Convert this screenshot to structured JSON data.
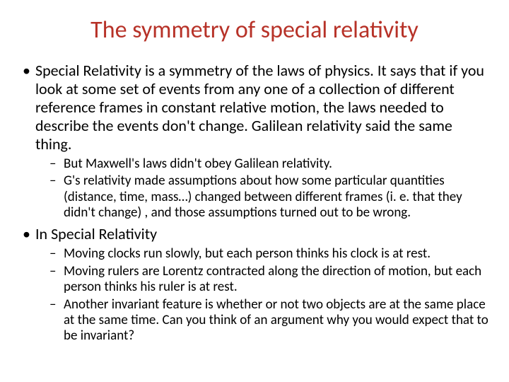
{
  "title": "The symmetry of special relativity",
  "title_color": "#b73228",
  "background_color": "#ffffff",
  "text_color": "#000000",
  "font_family": "Calibri",
  "title_fontsize": 34,
  "bullet_fontsize": 22,
  "subbullet_fontsize": 19,
  "bullets": {
    "item0": {
      "text": "Special Relativity is a symmetry of the laws of physics. It says that if you look at some set of events from any one of a collection of different reference frames in constant relative motion, the laws needed to describe the events don't change. Galilean relativity said the same thing.",
      "sub0": " But Maxwell's laws didn't obey Galilean relativity.",
      "sub1": "G's relativity made assumptions about how some particular quantities (distance, time, mass…) changed between different frames (i. e. that they didn't change) , and those assumptions turned out to be wrong."
    },
    "item1": {
      "text": "In  Special Relativity",
      "sub0": "Moving clocks run slowly, but each person thinks his clock is at rest.",
      "sub1": "Moving rulers are Lorentz contracted along the direction of motion, but each person thinks his ruler is at rest.",
      "sub2": "Another invariant feature is whether or not two objects are at the same place at the same time. Can you think of an argument why you would expect that to be invariant?"
    }
  }
}
